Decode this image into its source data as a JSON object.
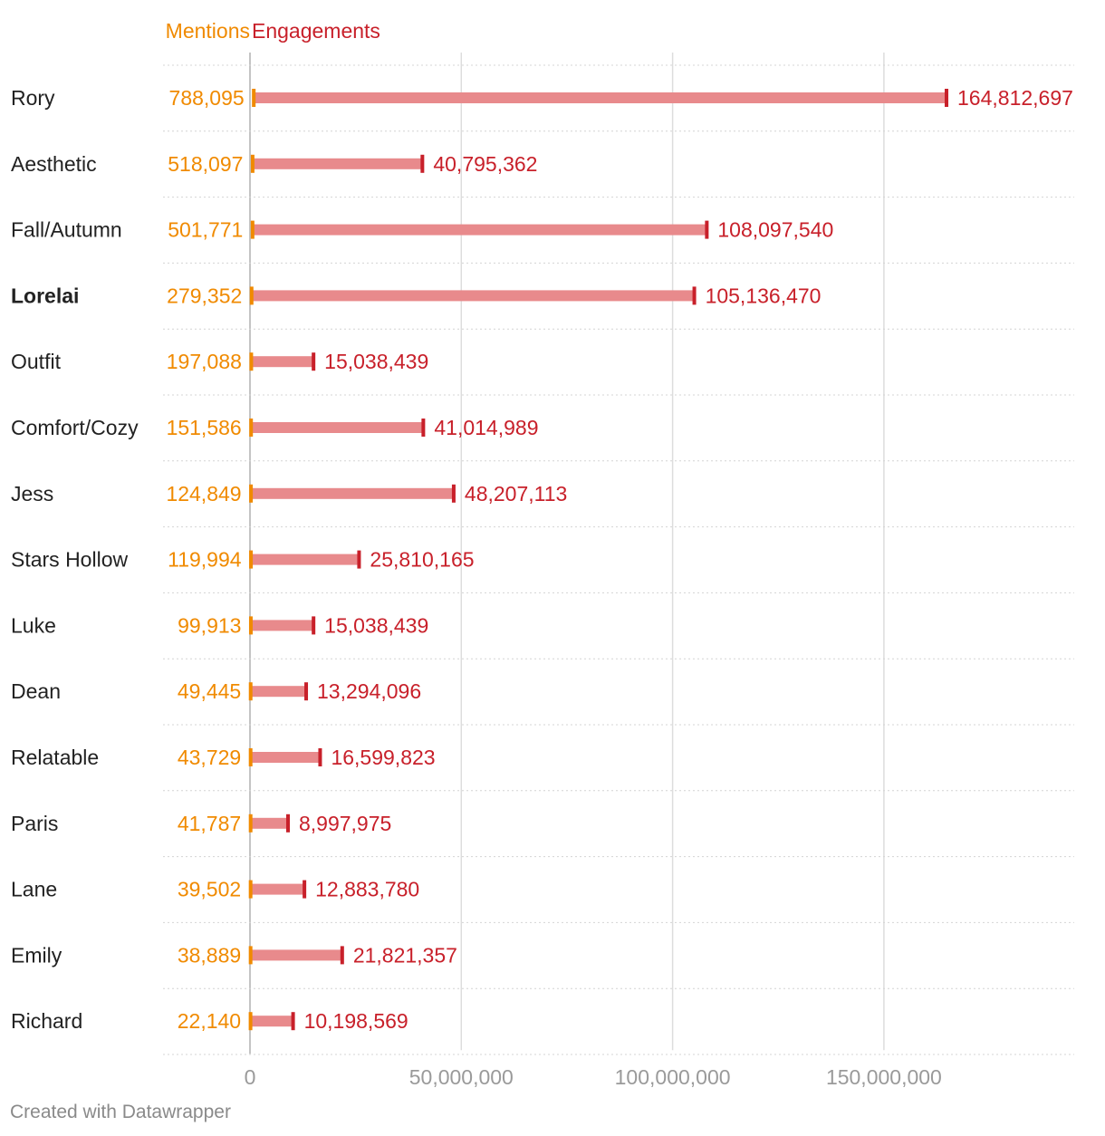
{
  "chart_data": {
    "type": "range-bar",
    "title": "",
    "xlabel": "",
    "ylabel": "",
    "xlim": [
      0,
      195000000
    ],
    "x_ticks": [
      0,
      50000000,
      100000000,
      150000000
    ],
    "x_tick_labels": [
      "0",
      "50,000,000",
      "100,000,000",
      "150,000,000"
    ],
    "grid": true,
    "legend_position": "top",
    "series": [
      {
        "name": "Mentions",
        "color": "#f08a00"
      },
      {
        "name": "Engagements",
        "color": "#c8202a"
      }
    ],
    "range_color": "#e88a8c",
    "categories": [
      "Rory",
      "Aesthetic",
      "Fall/Autumn",
      "Lorelai",
      "Outfit",
      "Comfort/Cozy",
      "Jess",
      "Stars Hollow",
      "Luke",
      "Dean",
      "Relatable",
      "Paris",
      "Lane",
      "Emily",
      "Richard"
    ],
    "highlighted": [
      "Lorelai"
    ],
    "mentions": [
      788095,
      518097,
      501771,
      279352,
      197088,
      151586,
      124849,
      119994,
      99913,
      49445,
      43729,
      41787,
      39502,
      38889,
      22140
    ],
    "mentions_labels": [
      "788,095",
      "518,097",
      "501,771",
      "279,352",
      "197,088",
      "151,586",
      "124,849",
      "119,994",
      "99,913",
      "49,445",
      "43,729",
      "41,787",
      "39,502",
      "38,889",
      "22,140"
    ],
    "engagements": [
      164812697,
      40795362,
      108097540,
      105136470,
      15038439,
      41014989,
      48207113,
      25810165,
      15038439,
      13294096,
      16599823,
      8997975,
      12883780,
      21821357,
      10198569
    ],
    "engagements_labels": [
      "164,812,697",
      "40,795,362",
      "108,097,540",
      "105,136,470",
      "15,038,439",
      "41,014,989",
      "48,207,113",
      "25,810,165",
      "15,038,439",
      "13,294,096",
      "16,599,823",
      "8,997,975",
      "12,883,780",
      "21,821,357",
      "10,198,569"
    ]
  },
  "footer": {
    "credit": "Created with Datawrapper"
  }
}
